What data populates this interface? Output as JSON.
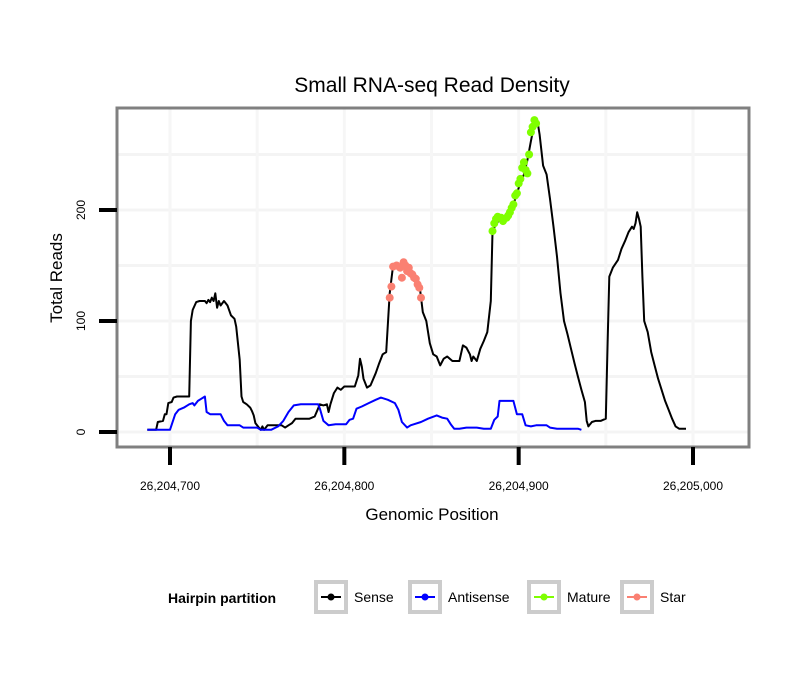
{
  "chart_data": {
    "type": "line",
    "title": "Small RNA-seq Read Density",
    "xlabel": "Genomic Position",
    "ylabel": "Total Reads",
    "xlim": [
      26204670,
      26205030
    ],
    "ylim": [
      -15,
      290
    ],
    "x_ticks": [
      26204700,
      26204800,
      26204900,
      26205000
    ],
    "x_tick_labels": [
      "26,204,700",
      "26,204,800",
      "26,204,900",
      "26,205,000"
    ],
    "y_ticks": [
      0,
      100,
      200
    ],
    "y_tick_labels": [
      "0",
      "100",
      "200"
    ],
    "grid": true,
    "legend": {
      "title": "Hairpin partition",
      "placement": "bottom",
      "entries": [
        {
          "name": "Sense",
          "color": "#000000"
        },
        {
          "name": "Antisense",
          "color": "#0000ff"
        },
        {
          "name": "Mature",
          "color": "#7fff00"
        },
        {
          "name": "Star",
          "color": "#fa8072"
        }
      ]
    },
    "series": [
      {
        "name": "Sense",
        "color": "#000000",
        "style": "line",
        "points": [
          [
            26204687,
            2
          ],
          [
            26204692,
            2
          ],
          [
            26204693,
            9
          ],
          [
            26204696,
            10
          ],
          [
            26204697,
            16
          ],
          [
            26204698,
            16
          ],
          [
            26204699,
            26
          ],
          [
            26204701,
            27
          ],
          [
            26204702,
            31
          ],
          [
            26204704,
            32
          ],
          [
            26204711,
            32
          ],
          [
            26204712,
            100
          ],
          [
            26204713,
            110
          ],
          [
            26204715,
            117
          ],
          [
            26204717,
            118
          ],
          [
            26204720,
            118
          ],
          [
            26204721,
            116
          ],
          [
            26204722,
            119
          ],
          [
            26204723,
            117
          ],
          [
            26204724,
            121
          ],
          [
            26204725,
            118
          ],
          [
            26204726,
            125
          ],
          [
            26204727,
            112
          ],
          [
            26204728,
            118
          ],
          [
            26204729,
            114
          ],
          [
            26204731,
            118
          ],
          [
            26204733,
            114
          ],
          [
            26204735,
            105
          ],
          [
            26204737,
            102
          ],
          [
            26204738,
            95
          ],
          [
            26204740,
            65
          ],
          [
            26204741,
            32
          ],
          [
            26204742,
            27
          ],
          [
            26204744,
            25
          ],
          [
            26204746,
            22
          ],
          [
            26204747,
            19
          ],
          [
            26204748,
            15
          ],
          [
            26204749,
            8
          ],
          [
            26204751,
            4
          ],
          [
            26204752,
            2
          ],
          [
            26204753,
            5
          ],
          [
            26204754,
            2
          ],
          [
            26204756,
            6
          ],
          [
            26204760,
            6
          ],
          [
            26204764,
            6
          ],
          [
            26204766,
            4
          ],
          [
            26204768,
            6
          ],
          [
            26204770,
            8
          ],
          [
            26204772,
            12
          ],
          [
            26204776,
            12
          ],
          [
            26204780,
            12
          ],
          [
            26204783,
            14
          ],
          [
            26204786,
            25
          ],
          [
            26204788,
            24
          ],
          [
            26204790,
            25
          ],
          [
            26204791,
            18
          ],
          [
            26204792,
            25
          ],
          [
            26204794,
            35
          ],
          [
            26204796,
            40
          ],
          [
            26204798,
            38
          ],
          [
            26204800,
            41
          ],
          [
            26204806,
            41
          ],
          [
            26204808,
            51
          ],
          [
            26204809,
            66
          ],
          [
            26204810,
            59
          ],
          [
            26204811,
            48
          ],
          [
            26204813,
            40
          ],
          [
            26204815,
            42
          ],
          [
            26204818,
            53
          ],
          [
            26204820,
            62
          ],
          [
            26204822,
            70
          ],
          [
            26204824,
            72
          ],
          [
            26204826,
            125
          ],
          [
            26204828,
            150
          ],
          [
            26204830,
            151
          ],
          [
            26204833,
            150
          ],
          [
            26204835,
            154
          ],
          [
            26204838,
            147
          ],
          [
            26204840,
            140
          ],
          [
            26204843,
            134
          ],
          [
            26204845,
            108
          ],
          [
            26204847,
            100
          ],
          [
            26204849,
            80
          ],
          [
            26204851,
            70
          ],
          [
            26204853,
            68
          ],
          [
            26204855,
            60
          ],
          [
            26204857,
            66
          ],
          [
            26204859,
            68
          ],
          [
            26204862,
            64
          ],
          [
            26204866,
            64
          ],
          [
            26204868,
            78
          ],
          [
            26204870,
            76
          ],
          [
            26204872,
            70
          ],
          [
            26204873,
            64
          ],
          [
            26204874,
            68
          ],
          [
            26204876,
            64
          ],
          [
            26204878,
            75
          ],
          [
            26204880,
            82
          ],
          [
            26204882,
            90
          ],
          [
            26204884,
            118
          ],
          [
            26204885,
            180
          ],
          [
            26204887,
            188
          ],
          [
            26204890,
            192
          ],
          [
            26204893,
            194
          ],
          [
            26204896,
            200
          ],
          [
            26204898,
            210
          ],
          [
            26204900,
            220
          ],
          [
            26204903,
            232
          ],
          [
            26204905,
            245
          ],
          [
            26204907,
            262
          ],
          [
            26204909,
            278
          ],
          [
            26204910,
            280
          ],
          [
            26204911,
            278
          ],
          [
            26204912,
            268
          ],
          [
            26204914,
            240
          ],
          [
            26204916,
            232
          ],
          [
            26204918,
            210
          ],
          [
            26204920,
            185
          ],
          [
            26204922,
            158
          ],
          [
            26204924,
            125
          ],
          [
            26204926,
            100
          ],
          [
            26204928,
            88
          ],
          [
            26204930,
            75
          ],
          [
            26204932,
            62
          ],
          [
            26204934,
            50
          ],
          [
            26204936,
            38
          ],
          [
            26204938,
            27
          ],
          [
            26204939,
            10
          ],
          [
            26204940,
            5
          ],
          [
            26204941,
            7
          ],
          [
            26204942,
            9
          ],
          [
            26204944,
            10
          ],
          [
            26204947,
            10
          ],
          [
            26204950,
            12
          ],
          [
            26204951,
            80
          ],
          [
            26204952,
            140
          ],
          [
            26204954,
            148
          ],
          [
            26204957,
            155
          ],
          [
            26204959,
            165
          ],
          [
            26204961,
            172
          ],
          [
            26204963,
            180
          ],
          [
            26204965,
            185
          ],
          [
            26204966,
            183
          ],
          [
            26204967,
            188
          ],
          [
            26204968,
            198
          ],
          [
            26204969,
            192
          ],
          [
            26204970,
            185
          ],
          [
            26204971,
            140
          ],
          [
            26204972,
            100
          ],
          [
            26204974,
            90
          ],
          [
            26204976,
            72
          ],
          [
            26204978,
            60
          ],
          [
            26204980,
            48
          ],
          [
            26204982,
            38
          ],
          [
            26204984,
            28
          ],
          [
            26204986,
            20
          ],
          [
            26204988,
            12
          ],
          [
            26204990,
            5
          ],
          [
            26204992,
            3
          ],
          [
            26204996,
            3
          ]
        ]
      },
      {
        "name": "Antisense",
        "color": "#0000ff",
        "style": "line",
        "points": [
          [
            26204687,
            2
          ],
          [
            26204700,
            2
          ],
          [
            26204703,
            16
          ],
          [
            26204705,
            20
          ],
          [
            26204708,
            22
          ],
          [
            26204711,
            25
          ],
          [
            26204713,
            26
          ],
          [
            26204714,
            24
          ],
          [
            26204716,
            28
          ],
          [
            26204718,
            30
          ],
          [
            26204720,
            32
          ],
          [
            26204721,
            18
          ],
          [
            26204723,
            16
          ],
          [
            26204729,
            16
          ],
          [
            26204731,
            10
          ],
          [
            26204733,
            6
          ],
          [
            26204740,
            6
          ],
          [
            26204742,
            4
          ],
          [
            26204750,
            4
          ],
          [
            26204752,
            2
          ],
          [
            26204758,
            2
          ],
          [
            26204762,
            5
          ],
          [
            26204765,
            10
          ],
          [
            26204768,
            18
          ],
          [
            26204771,
            24
          ],
          [
            26204775,
            25
          ],
          [
            26204785,
            25
          ],
          [
            26204786,
            21
          ],
          [
            26204788,
            10
          ],
          [
            26204791,
            6
          ],
          [
            26204795,
            7
          ],
          [
            26204801,
            7
          ],
          [
            26204803,
            11
          ],
          [
            26204805,
            12
          ],
          [
            26204807,
            21
          ],
          [
            26204810,
            23
          ],
          [
            26204814,
            26
          ],
          [
            26204818,
            29
          ],
          [
            26204821,
            31
          ],
          [
            26204825,
            29
          ],
          [
            26204829,
            26
          ],
          [
            26204831,
            20
          ],
          [
            26204833,
            9
          ],
          [
            26204836,
            4
          ],
          [
            26204838,
            6
          ],
          [
            26204840,
            7
          ],
          [
            26204844,
            9
          ],
          [
            26204848,
            12
          ],
          [
            26204853,
            15
          ],
          [
            26204856,
            13
          ],
          [
            26204859,
            12
          ],
          [
            26204861,
            7
          ],
          [
            26204863,
            3
          ],
          [
            26204866,
            3
          ],
          [
            26204870,
            4
          ],
          [
            26204876,
            4
          ],
          [
            26204880,
            3
          ],
          [
            26204884,
            3
          ],
          [
            26204886,
            11
          ],
          [
            26204888,
            14
          ],
          [
            26204889,
            28
          ],
          [
            26204893,
            28
          ],
          [
            26204897,
            28
          ],
          [
            26204899,
            16
          ],
          [
            26204902,
            16
          ],
          [
            26204904,
            6
          ],
          [
            26204907,
            5
          ],
          [
            26204910,
            6
          ],
          [
            26204916,
            6
          ],
          [
            26204918,
            4
          ],
          [
            26204922,
            3
          ],
          [
            26204934,
            3
          ],
          [
            26204936,
            2
          ]
        ]
      },
      {
        "name": "Mature",
        "color": "#7fff00",
        "style": "points",
        "points": [
          [
            26204885,
            181
          ],
          [
            26204886,
            188
          ],
          [
            26204887,
            192
          ],
          [
            26204888,
            194
          ],
          [
            26204890,
            193
          ],
          [
            26204891,
            190
          ],
          [
            26204893,
            193
          ],
          [
            26204894,
            195
          ],
          [
            26204895,
            198
          ],
          [
            26204896,
            202
          ],
          [
            26204897,
            205
          ],
          [
            26204898,
            213
          ],
          [
            26204899,
            215
          ],
          [
            26204900,
            224
          ],
          [
            26204901,
            228
          ],
          [
            26204902,
            238
          ],
          [
            26204903,
            243
          ],
          [
            26204904,
            236
          ],
          [
            26204905,
            233
          ],
          [
            26204906,
            250
          ],
          [
            26204907,
            270
          ],
          [
            26204908,
            275
          ],
          [
            26204909,
            281
          ],
          [
            26204910,
            278
          ]
        ]
      },
      {
        "name": "Star",
        "color": "#fa8072",
        "style": "points",
        "points": [
          [
            26204826,
            121
          ],
          [
            26204827,
            131
          ],
          [
            26204828,
            149
          ],
          [
            26204830,
            150
          ],
          [
            26204832,
            148
          ],
          [
            26204833,
            139
          ],
          [
            26204834,
            153
          ],
          [
            26204835,
            150
          ],
          [
            26204836,
            145
          ],
          [
            26204837,
            148
          ],
          [
            26204838,
            143
          ],
          [
            26204839,
            142
          ],
          [
            26204840,
            139
          ],
          [
            26204841,
            138
          ],
          [
            26204842,
            133
          ],
          [
            26204843,
            130
          ],
          [
            26204844,
            121
          ]
        ]
      }
    ]
  }
}
